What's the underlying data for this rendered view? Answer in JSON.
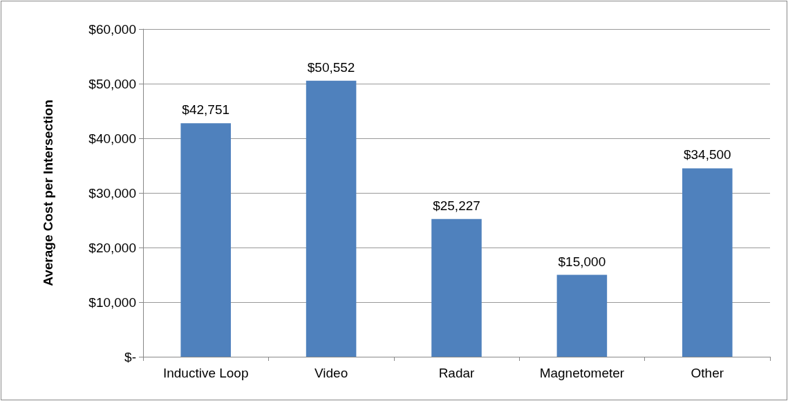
{
  "chart_data": {
    "type": "bar",
    "ylabel": "Average Cost per Intersection",
    "categories": [
      "Inductive Loop",
      "Video",
      "Radar",
      "Magnetometer",
      "Other"
    ],
    "values": [
      42751,
      50552,
      25227,
      15000,
      34500
    ],
    "value_labels": [
      "$42,751",
      "$50,552",
      "$25,227",
      "$15,000",
      "$34,500"
    ],
    "color": "#4f81bd",
    "ylim": [
      0,
      60000
    ],
    "yticks": [
      {
        "value": 0,
        "label": "$-"
      },
      {
        "value": 10000,
        "label": "$10,000"
      },
      {
        "value": 20000,
        "label": "$20,000"
      },
      {
        "value": 30000,
        "label": "$30,000"
      },
      {
        "value": 40000,
        "label": "$40,000"
      },
      {
        "value": 50000,
        "label": "$50,000"
      },
      {
        "value": 60000,
        "label": "$60,000"
      }
    ],
    "grid": true
  }
}
